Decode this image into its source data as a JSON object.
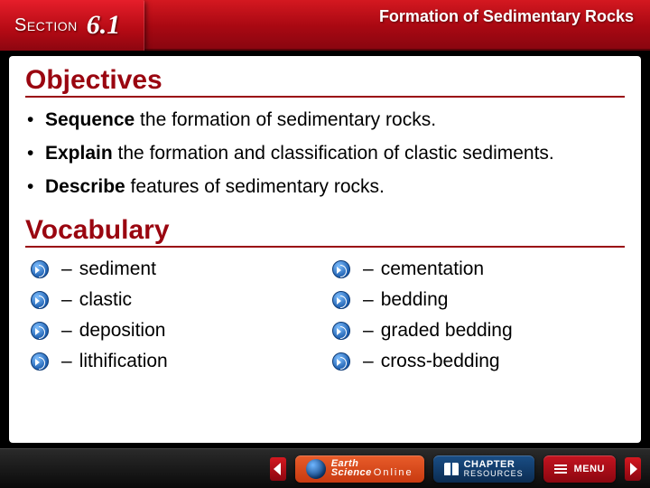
{
  "header": {
    "section_label": "Section",
    "section_number": "6.1",
    "title": "Formation of Sedimentary Rocks"
  },
  "objectives": {
    "heading": "Objectives",
    "items": [
      {
        "term": "Sequence",
        "rest": " the formation of sedimentary rocks."
      },
      {
        "term": "Explain",
        "rest": " the formation and classification of clastic sediments."
      },
      {
        "term": "Describe",
        "rest": " features of sedimentary rocks."
      }
    ]
  },
  "vocabulary": {
    "heading": "Vocabulary",
    "left": [
      "sediment",
      "clastic",
      "deposition",
      "lithification"
    ],
    "right": [
      "cementation",
      "bedding",
      "graded bedding",
      "cross-bedding"
    ]
  },
  "footer": {
    "earth_line1": "Earth",
    "earth_line2": "Science",
    "earth_online": "Online",
    "chapter": "CHAPTER",
    "resources": "RESOURCES",
    "menu": "MENU"
  },
  "colors": {
    "brand_red": "#9a0610",
    "header_gradient_top": "#d41820",
    "header_gradient_bottom": "#8a0610",
    "blue_chip": "#1a4e86"
  }
}
